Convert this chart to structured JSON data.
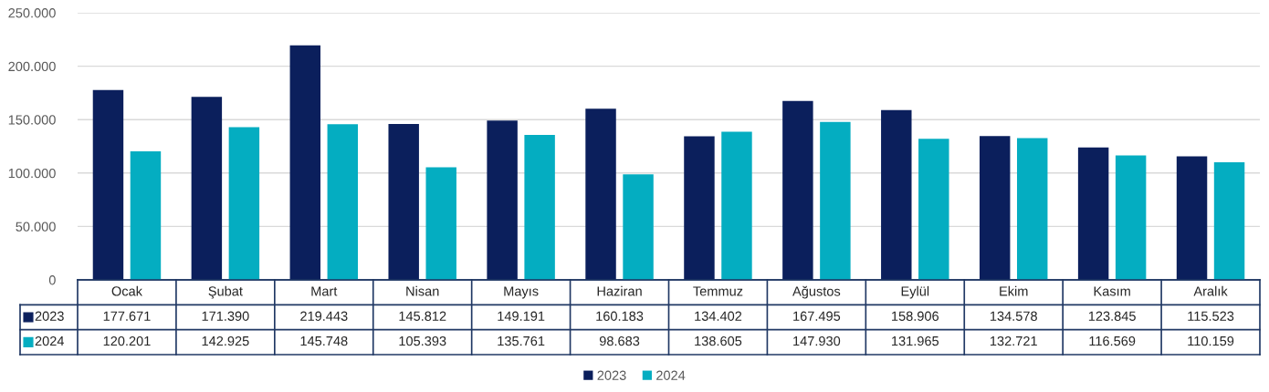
{
  "chart_data": {
    "type": "bar",
    "categories": [
      "Ocak",
      "Şubat",
      "Mart",
      "Nisan",
      "Mayıs",
      "Haziran",
      "Temmuz",
      "Ağustos",
      "Eylül",
      "Ekim",
      "Kasım",
      "Aralık"
    ],
    "series": [
      {
        "name": "2023",
        "color": "#0b1f5c",
        "values": [
          177671,
          171390,
          219443,
          145812,
          149191,
          160183,
          134402,
          167495,
          158906,
          134578,
          123845,
          115523
        ],
        "value_labels": [
          "177.671",
          "171.390",
          "219.443",
          "145.812",
          "149.191",
          "160.183",
          "134.402",
          "167.495",
          "158.906",
          "134.578",
          "123.845",
          "115.523"
        ]
      },
      {
        "name": "2024",
        "color": "#04adc1",
        "values": [
          120201,
          142925,
          145748,
          105393,
          135761,
          98683,
          138605,
          147930,
          131965,
          132721,
          116569,
          110159
        ],
        "value_labels": [
          "120.201",
          "142.925",
          "145.748",
          "105.393",
          "135.761",
          "98.683",
          "138.605",
          "147.930",
          "131.965",
          "132.721",
          "116.569",
          "110.159"
        ]
      }
    ],
    "ylim": [
      0,
      250000
    ],
    "yticks": [
      0,
      {
        "value": 50000,
        "label": "50.000"
      },
      {
        "value": 100000,
        "label": "100.000"
      },
      {
        "value": 150000,
        "label": "150.000"
      },
      {
        "value": 200000,
        "label": "200.000"
      },
      {
        "value": 250000,
        "label": "250.000"
      }
    ],
    "grid": "y",
    "legend": "bottom"
  }
}
